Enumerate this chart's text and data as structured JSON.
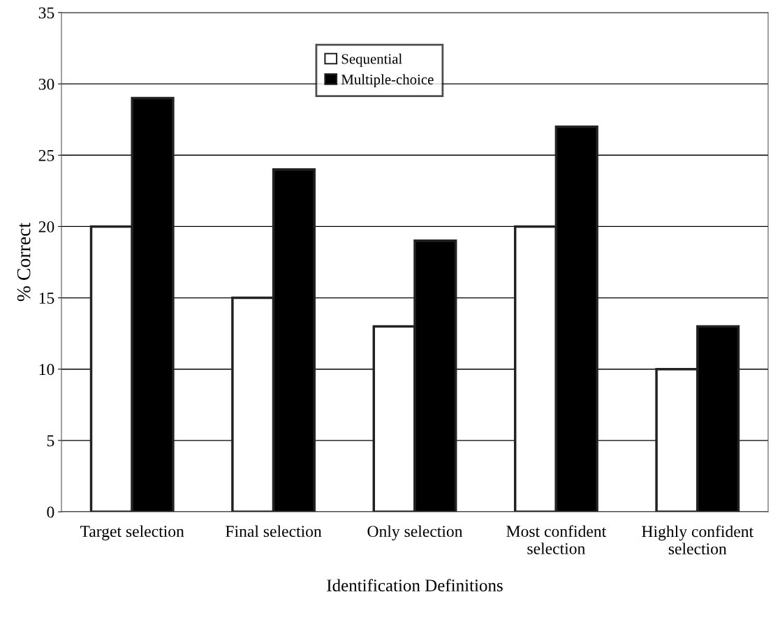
{
  "chart_data": {
    "type": "bar",
    "xlabel": "Identification Definitions",
    "ylabel": "% Correct",
    "categories": [
      "Target selection",
      "Final selection",
      "Only selection",
      "Most confident\nselection",
      "Highly confident\nselection"
    ],
    "series": [
      {
        "name": "Sequential",
        "color": "#ffffff",
        "values": [
          20,
          15,
          13,
          20,
          10
        ]
      },
      {
        "name": "Multiple-choice",
        "color": "#000000",
        "values": [
          29,
          24,
          19,
          27,
          13
        ]
      }
    ],
    "ylim": [
      0,
      35
    ],
    "yticks": [
      0,
      5,
      10,
      15,
      20,
      25,
      30,
      35
    ],
    "grid": "y",
    "legend": "top"
  }
}
